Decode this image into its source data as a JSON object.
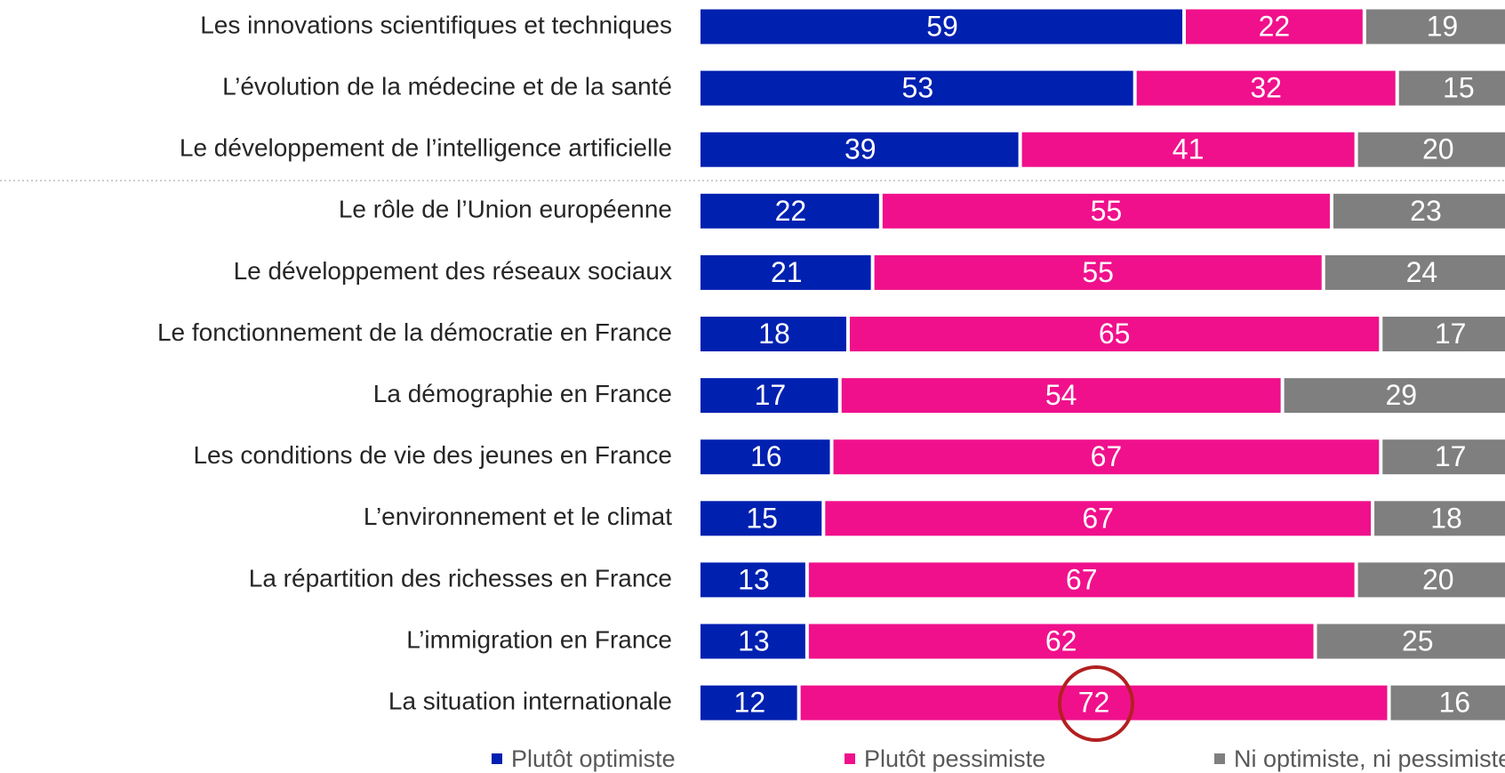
{
  "chart_data": {
    "type": "bar",
    "orientation": "horizontal",
    "stacked": true,
    "categories": [
      "Les innovations scientifiques et techniques",
      "L’évolution de la médecine et de la santé",
      "Le développement de l’intelligence artificielle",
      "Le rôle de l’Union européenne",
      "Le développement des réseaux sociaux",
      "Le fonctionnement de la démocratie en France",
      "La démographie en France",
      "Les conditions de vie des jeunes en France",
      "L’environnement et le climat",
      "La répartition des richesses en France",
      "L’immigration en France",
      "La situation internationale"
    ],
    "series": [
      {
        "name": "Plutôt optimiste",
        "color": "#0020b0",
        "values": [
          59,
          53,
          39,
          22,
          21,
          18,
          17,
          16,
          15,
          13,
          13,
          12
        ]
      },
      {
        "name": "Plutôt pessimiste",
        "color": "#f0108c",
        "values": [
          22,
          32,
          41,
          55,
          55,
          65,
          54,
          67,
          67,
          67,
          62,
          72
        ]
      },
      {
        "name": "Ni optimiste, ni pessimiste",
        "color": "#7f7f7f",
        "values": [
          19,
          15,
          20,
          23,
          24,
          17,
          29,
          17,
          18,
          20,
          25,
          16
        ]
      }
    ],
    "xlim": [
      0,
      100
    ]
  }
}
